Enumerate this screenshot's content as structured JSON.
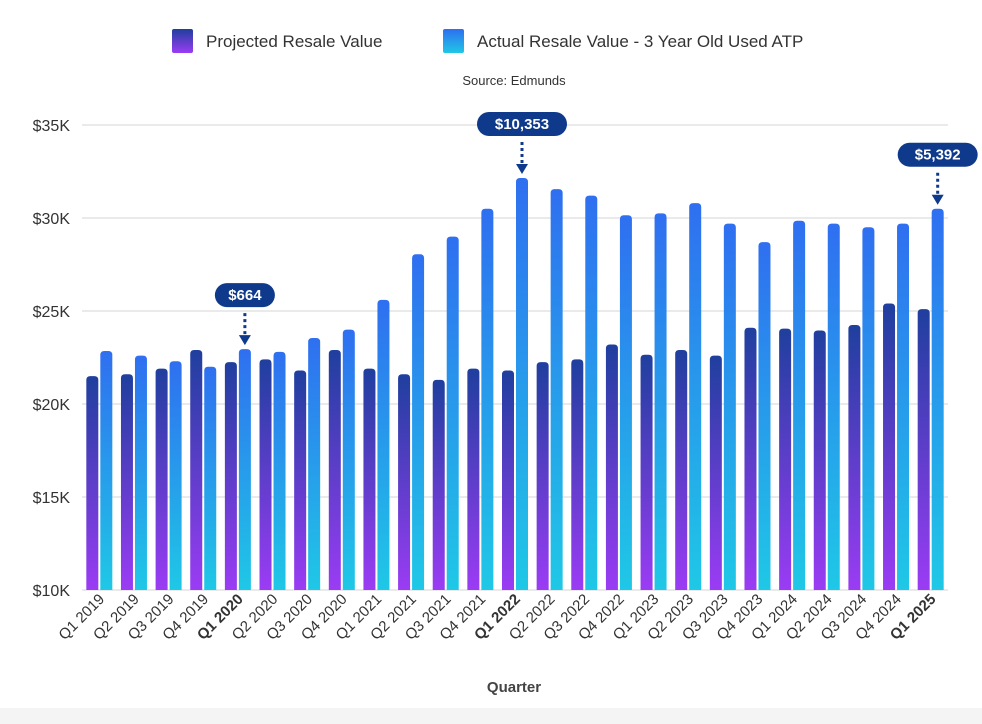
{
  "chart_data": {
    "type": "bar",
    "source": "Source: Edmunds",
    "xlabel": "Quarter",
    "ylabel": "",
    "ylim": [
      10000,
      35000
    ],
    "yticks": [
      10000,
      15000,
      20000,
      25000,
      30000,
      35000
    ],
    "ytick_labels": [
      "$10K",
      "$15K",
      "$20K",
      "$25K",
      "$30K",
      "$35K"
    ],
    "grid": true,
    "legend_position": "top",
    "categories": [
      "Q1 2019",
      "Q2 2019",
      "Q3 2019",
      "Q4 2019",
      "Q1 2020",
      "Q2 2020",
      "Q3 2020",
      "Q4 2020",
      "Q1 2021",
      "Q2 2021",
      "Q3 2021",
      "Q4 2021",
      "Q1 2022",
      "Q2 2022",
      "Q3 2022",
      "Q4 2022",
      "Q1 2023",
      "Q2 2023",
      "Q3 2023",
      "Q4 2023",
      "Q1 2024",
      "Q2 2024",
      "Q3 2024",
      "Q4 2024",
      "Q1 2025"
    ],
    "bold_categories": [
      "Q1 2020",
      "Q1 2022",
      "Q1 2025"
    ],
    "series": [
      {
        "name": "Projected Resale Value",
        "color_top": "#1f3f9e",
        "color_bottom": "#9b3cf4",
        "values": [
          21500,
          21600,
          21900,
          22900,
          22250,
          22400,
          21800,
          22900,
          21900,
          21600,
          21300,
          21900,
          21800,
          22250,
          22400,
          23200,
          22650,
          22900,
          22600,
          24100,
          24050,
          23950,
          24250,
          25400,
          25100
        ]
      },
      {
        "name": "Actual Resale Value - 3 Year Old Used ATP",
        "color_top": "#2f6ff0",
        "color_bottom": "#1fc8e6",
        "values": [
          22850,
          22600,
          22300,
          22000,
          22950,
          22800,
          23550,
          24000,
          25600,
          28050,
          29000,
          30500,
          32150,
          31550,
          31200,
          30150,
          30250,
          30800,
          29700,
          28700,
          29850,
          29700,
          29500,
          29700,
          30500
        ]
      }
    ],
    "annotations": [
      {
        "category": "Q1 2020",
        "label": "$664",
        "series": 1
      },
      {
        "category": "Q1 2022",
        "label": "$10,353",
        "series": 1
      },
      {
        "category": "Q1 2025",
        "label": "$5,392",
        "series": 1
      }
    ],
    "annotation_color": "#0f3a8c"
  }
}
